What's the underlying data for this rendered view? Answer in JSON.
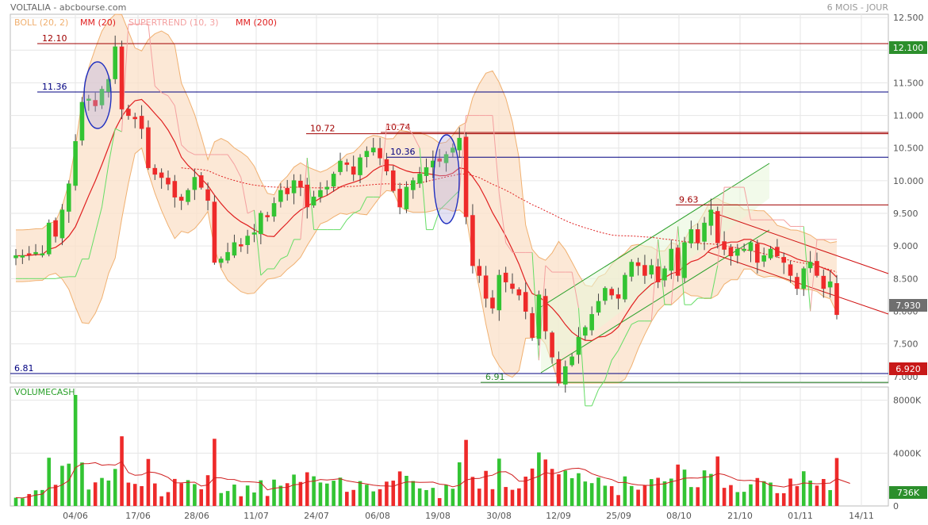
{
  "header": {
    "title": "VOLTALIA - abcbourse.com",
    "period": "6 MOIS - JOUR"
  },
  "legend": [
    {
      "label": "BOLL (20, 2)",
      "color": "#f0b070"
    },
    {
      "label": "MM (20)",
      "color": "#e02020"
    },
    {
      "label": "SUPERTREND (10, 3)",
      "color": "#f4a0a0"
    },
    {
      "label": "MM (200)",
      "color": "#e02020"
    }
  ],
  "colors": {
    "up": "#33c433",
    "down": "#ee2a2a",
    "boll_fill": "#fbe0c8",
    "boll_line": "#f0b070",
    "mm20": "#e02020",
    "supertrend_up": "#66dd66",
    "supertrend_down": "#f4a0a0",
    "hline_red": "#a00000",
    "hline_blue": "#000080",
    "hline_green": "#2a8a2a",
    "channel_green": "#2aa02a",
    "channel_red": "#d01010"
  },
  "chart_data": [
    {
      "type": "candlestick",
      "title": "",
      "x_tick_labels": [
        "04/06",
        "17/06",
        "28/06",
        "11/07",
        "24/07",
        "06/08",
        "19/08",
        "30/08",
        "12/09",
        "25/09",
        "08/10",
        "21/10",
        "01/11",
        "14/11"
      ],
      "y_tick_labels": [
        "7.000",
        "7.500",
        "8.000",
        "8.500",
        "9.000",
        "9.500",
        "10.000",
        "10.500",
        "11.000",
        "11.500",
        "12.000",
        "12.500"
      ],
      "ylim": [
        6.9,
        12.55
      ],
      "close": [
        8.85,
        8.85,
        8.87,
        8.9,
        8.88,
        9.35,
        9.15,
        9.55,
        9.95,
        10.6,
        11.2,
        11.25,
        11.15,
        11.4,
        11.55,
        12.05,
        11.1,
        11.0,
        10.95,
        10.8,
        10.2,
        10.1,
        10.05,
        9.95,
        9.75,
        9.7,
        9.85,
        10.05,
        9.9,
        9.7,
        8.75,
        8.8,
        8.9,
        9.05,
        9.0,
        9.15,
        9.2,
        9.5,
        9.45,
        9.65,
        9.85,
        9.8,
        10.0,
        9.9,
        9.6,
        9.75,
        9.85,
        9.9,
        10.1,
        10.3,
        10.25,
        10.1,
        10.35,
        10.45,
        10.5,
        10.35,
        10.15,
        9.85,
        9.6,
        9.9,
        10.0,
        10.1,
        10.2,
        10.3,
        10.3,
        10.4,
        10.5,
        10.65,
        9.45,
        8.7,
        8.55,
        8.2,
        8.05,
        8.55,
        8.45,
        8.35,
        8.25,
        8.0,
        7.6,
        8.25,
        7.7,
        7.3,
        6.9,
        7.15,
        7.3,
        7.6,
        7.75,
        7.95,
        8.15,
        8.35,
        8.25,
        8.2,
        8.55,
        8.75,
        8.7,
        8.55,
        8.7,
        8.45,
        8.65,
        8.95,
        8.55,
        9.05,
        9.25,
        9.05,
        9.35,
        9.55,
        9.05,
        8.95,
        8.85,
        8.95,
        8.95,
        9.05,
        8.75,
        8.85,
        8.95,
        8.85,
        8.75,
        8.55,
        8.35,
        8.65,
        8.75,
        8.55,
        8.35,
        8.45,
        7.95
      ],
      "volume_y_tick_labels": [
        "8000K",
        "4000K",
        "0"
      ],
      "volume_last_label": "736K",
      "last_close_label": "7.930",
      "max_label": "12.100",
      "min_label": "6.920",
      "levels": [
        {
          "label": "12.10",
          "value": 12.1
        },
        {
          "label": "11.36",
          "value": 11.36
        },
        {
          "label": "10.72",
          "value": 10.72
        },
        {
          "label": "10.74",
          "value": 10.74
        },
        {
          "label": "10.36",
          "value": 10.36
        },
        {
          "label": "9.63",
          "value": 9.63
        },
        {
          "label": "6.91",
          "value": 6.91
        },
        {
          "label": "6.81",
          "value": 6.81
        }
      ],
      "volume_label": "VOLUMECASH"
    }
  ]
}
